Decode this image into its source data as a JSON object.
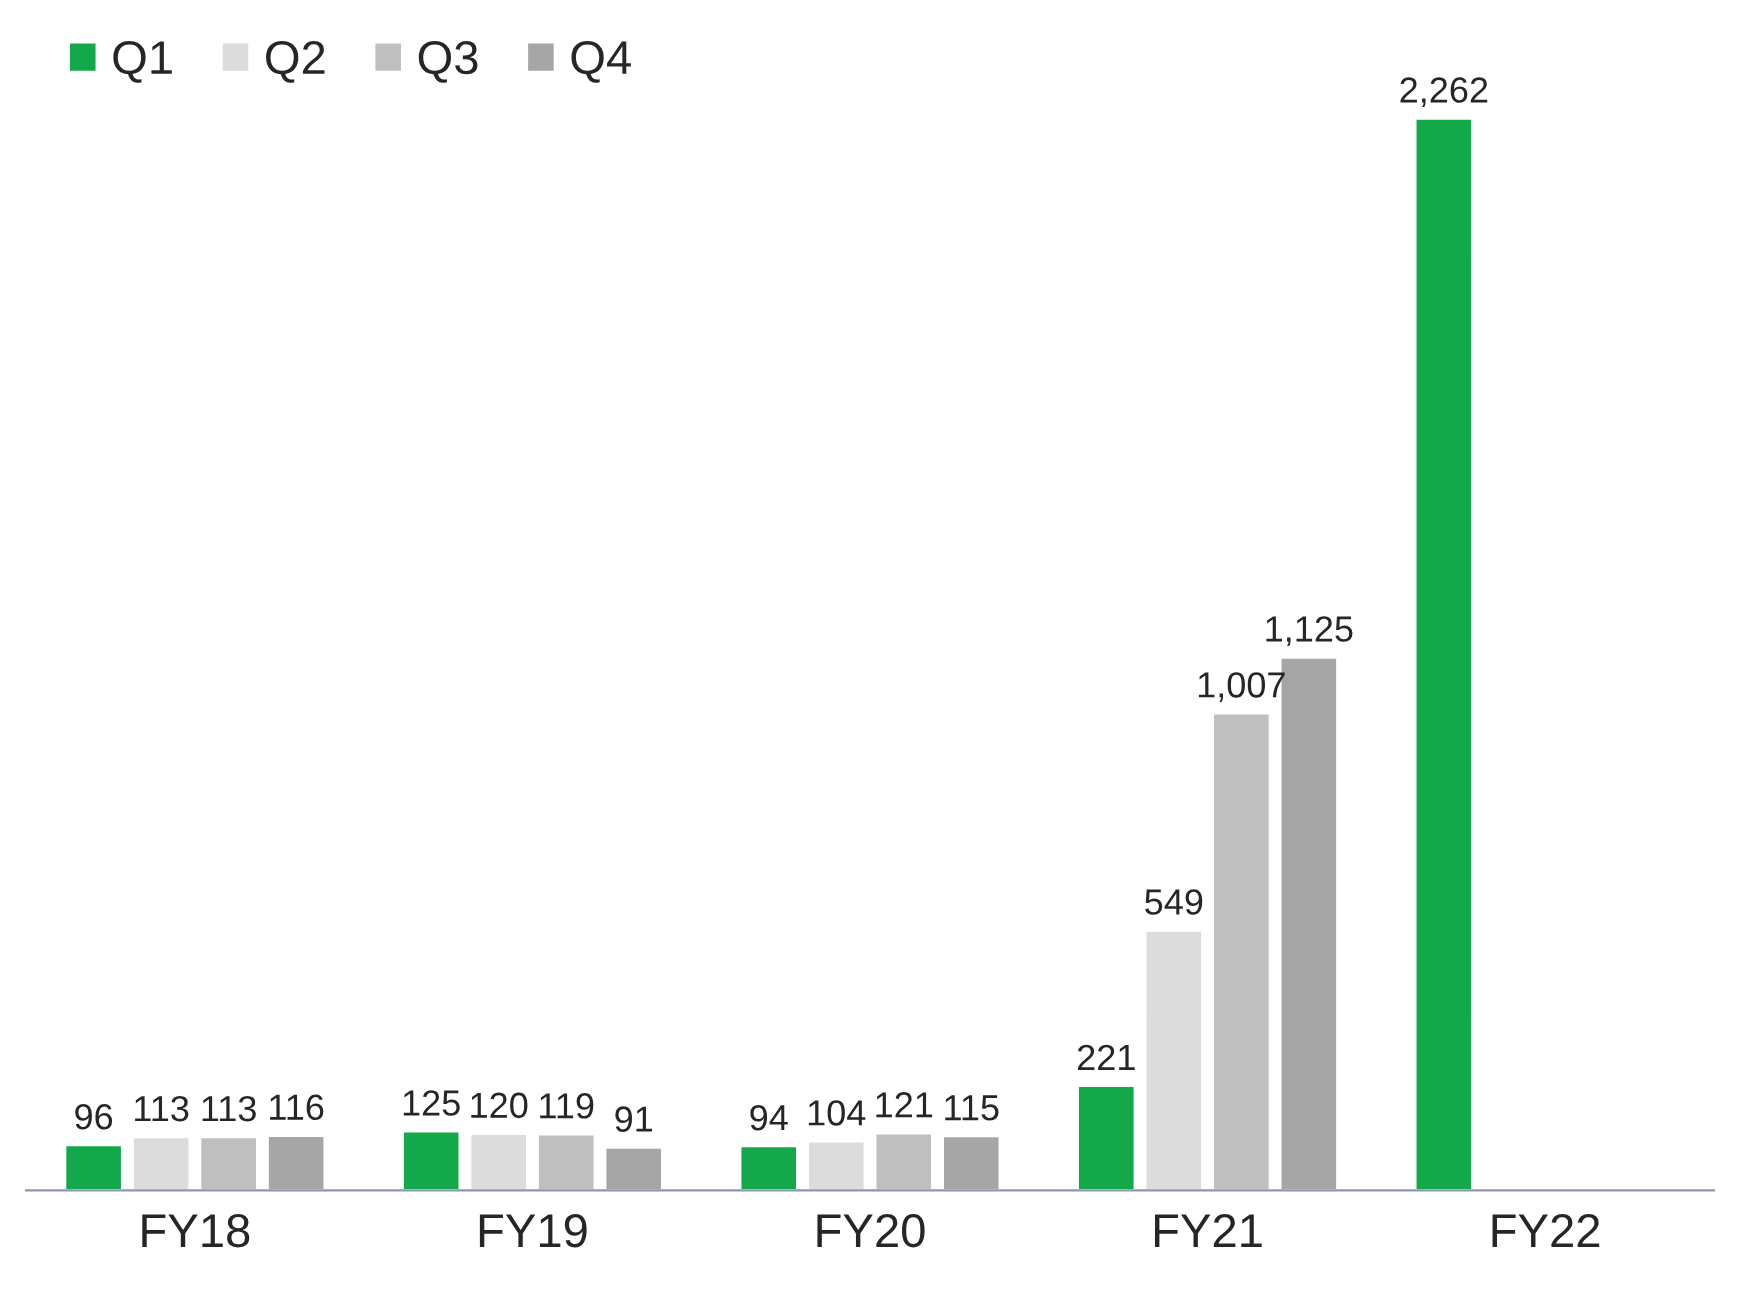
{
  "chart_data": {
    "type": "bar",
    "categories": [
      "FY18",
      "FY19",
      "FY20",
      "FY21",
      "FY22"
    ],
    "series": [
      {
        "name": "Q1",
        "color": "#13a84a",
        "values": [
          96,
          125,
          94,
          221,
          2262
        ],
        "value_labels": [
          "96",
          "125",
          "94",
          "221",
          "2,262"
        ]
      },
      {
        "name": "Q2",
        "color": "#dcdcdc",
        "values": [
          113,
          120,
          104,
          549,
          null
        ],
        "value_labels": [
          "113",
          "120",
          "104",
          "549",
          null
        ]
      },
      {
        "name": "Q3",
        "color": "#bfbfbf",
        "values": [
          113,
          119,
          121,
          1007,
          null
        ],
        "value_labels": [
          "113",
          "119",
          "121",
          "1,007",
          null
        ]
      },
      {
        "name": "Q4",
        "color": "#a6a6a6",
        "values": [
          116,
          91,
          115,
          1125,
          null
        ],
        "value_labels": [
          "116",
          "91",
          "115",
          "1,125",
          null
        ]
      }
    ],
    "legend": "top left"
  }
}
